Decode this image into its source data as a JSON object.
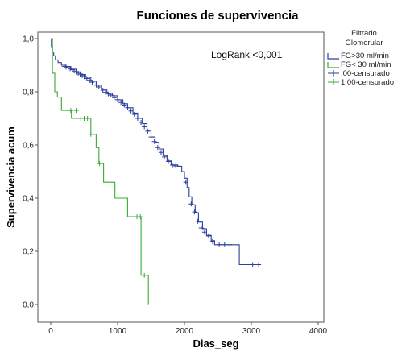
{
  "chart_data": {
    "type": "line",
    "title": "Funciones de supervivencia",
    "xlabel": "Dias_seg",
    "ylabel": "Supervivencia acum",
    "xlim": [
      0,
      4000
    ],
    "ylim": [
      0,
      1
    ],
    "x_ticks": [
      "0",
      "1000",
      "2000",
      "3000",
      "4000"
    ],
    "y_ticks": [
      "0,0",
      "0,2",
      "0,4",
      "0,6",
      "0,8",
      "1,0"
    ],
    "annotation": "LogRank <0,001",
    "legend": {
      "title_line1": "Filtrado",
      "title_line2": "Glomerular",
      "position": "right",
      "entries": [
        {
          "label": "FG>30 ml/min",
          "color": "#2b3f9c",
          "kind": "line"
        },
        {
          "label": "FG< 30 ml/min",
          "color": "#3aaa35",
          "kind": "line"
        },
        {
          "label": ",00-censurado",
          "color": "#2b3f9c",
          "kind": "censor"
        },
        {
          "label": "1,00-censurado",
          "color": "#3aaa35",
          "kind": "censor"
        }
      ]
    },
    "series": [
      {
        "name": "FG>30 ml/min",
        "color": "#2b3f9c",
        "steps": [
          [
            0,
            1.0
          ],
          [
            10,
            0.97
          ],
          [
            25,
            0.95
          ],
          [
            45,
            0.935
          ],
          [
            70,
            0.92
          ],
          [
            110,
            0.91
          ],
          [
            160,
            0.9
          ],
          [
            220,
            0.895
          ],
          [
            300,
            0.885
          ],
          [
            380,
            0.875
          ],
          [
            450,
            0.865
          ],
          [
            520,
            0.855
          ],
          [
            600,
            0.84
          ],
          [
            680,
            0.825
          ],
          [
            760,
            0.81
          ],
          [
            840,
            0.795
          ],
          [
            920,
            0.785
          ],
          [
            1000,
            0.77
          ],
          [
            1080,
            0.755
          ],
          [
            1150,
            0.74
          ],
          [
            1230,
            0.72
          ],
          [
            1300,
            0.7
          ],
          [
            1370,
            0.68
          ],
          [
            1440,
            0.655
          ],
          [
            1500,
            0.63
          ],
          [
            1560,
            0.61
          ],
          [
            1620,
            0.585
          ],
          [
            1680,
            0.56
          ],
          [
            1740,
            0.54
          ],
          [
            1800,
            0.525
          ],
          [
            1900,
            0.52
          ],
          [
            1960,
            0.5
          ],
          [
            2000,
            0.475
          ],
          [
            2040,
            0.44
          ],
          [
            2070,
            0.405
          ],
          [
            2110,
            0.375
          ],
          [
            2160,
            0.345
          ],
          [
            2210,
            0.31
          ],
          [
            2270,
            0.285
          ],
          [
            2330,
            0.26
          ],
          [
            2400,
            0.24
          ],
          [
            2450,
            0.225
          ],
          [
            2820,
            0.15
          ],
          [
            3120,
            0.15
          ]
        ],
        "censored": [
          [
            200,
            0.895
          ],
          [
            230,
            0.893
          ],
          [
            260,
            0.89
          ],
          [
            290,
            0.887
          ],
          [
            320,
            0.883
          ],
          [
            350,
            0.878
          ],
          [
            380,
            0.874
          ],
          [
            410,
            0.87
          ],
          [
            440,
            0.866
          ],
          [
            470,
            0.861
          ],
          [
            500,
            0.857
          ],
          [
            540,
            0.85
          ],
          [
            580,
            0.843
          ],
          [
            620,
            0.836
          ],
          [
            680,
            0.825
          ],
          [
            720,
            0.818
          ],
          [
            780,
            0.806
          ],
          [
            820,
            0.798
          ],
          [
            860,
            0.792
          ],
          [
            900,
            0.788
          ],
          [
            950,
            0.778
          ],
          [
            1000,
            0.77
          ],
          [
            1050,
            0.76
          ],
          [
            1100,
            0.75
          ],
          [
            1150,
            0.74
          ],
          [
            1200,
            0.728
          ],
          [
            1250,
            0.715
          ],
          [
            1300,
            0.7
          ],
          [
            1350,
            0.685
          ],
          [
            1400,
            0.668
          ],
          [
            1450,
            0.652
          ],
          [
            1500,
            0.63
          ],
          [
            1550,
            0.613
          ],
          [
            1600,
            0.59
          ],
          [
            1650,
            0.572
          ],
          [
            1700,
            0.555
          ],
          [
            1760,
            0.538
          ],
          [
            1820,
            0.524
          ],
          [
            1870,
            0.521
          ],
          [
            2020,
            0.46
          ],
          [
            2100,
            0.378
          ],
          [
            2150,
            0.348
          ],
          [
            2200,
            0.313
          ],
          [
            2250,
            0.288
          ],
          [
            2300,
            0.272
          ],
          [
            2360,
            0.258
          ],
          [
            2420,
            0.237
          ],
          [
            2520,
            0.225
          ],
          [
            2600,
            0.225
          ],
          [
            2680,
            0.225
          ],
          [
            3020,
            0.15
          ],
          [
            3110,
            0.15
          ]
        ]
      },
      {
        "name": "FG< 30 ml/min",
        "color": "#3aaa35",
        "steps": [
          [
            0,
            1.0
          ],
          [
            25,
            0.87
          ],
          [
            60,
            0.8
          ],
          [
            100,
            0.78
          ],
          [
            160,
            0.73
          ],
          [
            310,
            0.7
          ],
          [
            600,
            0.64
          ],
          [
            680,
            0.59
          ],
          [
            720,
            0.53
          ],
          [
            790,
            0.46
          ],
          [
            960,
            0.4
          ],
          [
            1150,
            0.33
          ],
          [
            1350,
            0.11
          ],
          [
            1460,
            0.0
          ],
          [
            1470,
            0.0
          ]
        ],
        "censored": [
          [
            300,
            0.73
          ],
          [
            380,
            0.73
          ],
          [
            450,
            0.7
          ],
          [
            500,
            0.7
          ],
          [
            550,
            0.7
          ],
          [
            600,
            0.64
          ],
          [
            730,
            0.53
          ],
          [
            1290,
            0.33
          ],
          [
            1340,
            0.33
          ],
          [
            1400,
            0.11
          ]
        ]
      }
    ]
  }
}
